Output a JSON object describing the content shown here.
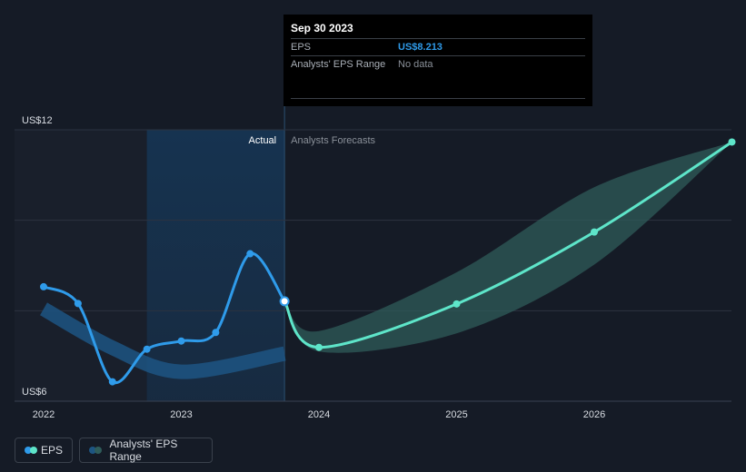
{
  "tooltip": {
    "date": "Sep 30 2023",
    "rows": [
      {
        "label": "EPS",
        "value": "US$8.213"
      },
      {
        "label": "Analysts' EPS Range",
        "value": "No data"
      }
    ]
  },
  "labels": {
    "actual": "Actual",
    "forecast": "Analysts Forecasts"
  },
  "legend": {
    "eps": "EPS",
    "range": "Analysts' EPS Range"
  },
  "colors": {
    "background": "#151b26",
    "eps_actual": "#2f9bea",
    "eps_forecast": "#5ee5c9",
    "range_actual": "#1d5582",
    "range_forecast": "#2f5c5a",
    "highlight": "#163452"
  },
  "chart_data": {
    "type": "line",
    "y_ticks": [
      {
        "value": 6,
        "label": "US$6"
      },
      {
        "value": 12,
        "label": "US$12"
      }
    ],
    "ylim": [
      6,
      12
    ],
    "x_ticks": [
      {
        "value": 2022.0,
        "label": "2022"
      },
      {
        "value": 2023.0,
        "label": "2023"
      },
      {
        "value": 2024.0,
        "label": "2024"
      },
      {
        "value": 2025.0,
        "label": "2025"
      },
      {
        "value": 2026.0,
        "label": "2026"
      }
    ],
    "xlim": [
      2021.8,
      2027.0
    ],
    "divider_x": 2023.75,
    "highlight_range": [
      2022.75,
      2023.75
    ],
    "series": [
      {
        "name": "EPS",
        "kind": "actual",
        "points": [
          [
            2022.0,
            8.53
          ],
          [
            2022.25,
            8.16
          ],
          [
            2022.5,
            6.43
          ],
          [
            2022.75,
            7.15
          ],
          [
            2023.0,
            7.33
          ],
          [
            2023.25,
            7.52
          ],
          [
            2023.5,
            9.26
          ],
          [
            2023.75,
            8.21
          ]
        ]
      },
      {
        "name": "EPS",
        "kind": "forecast",
        "points": [
          [
            2023.75,
            8.21
          ],
          [
            2024.0,
            7.19
          ],
          [
            2025.0,
            8.15
          ],
          [
            2026.0,
            9.74
          ],
          [
            2027.0,
            11.73
          ]
        ]
      },
      {
        "name": "Analysts' EPS Range",
        "kind": "actual_range",
        "points": [
          [
            2022.0,
            8.04
          ],
          [
            2022.5,
            7.18
          ],
          [
            2023.0,
            6.65
          ],
          [
            2023.75,
            7.05
          ]
        ]
      },
      {
        "name": "Analysts' EPS Range",
        "kind": "forecast_range",
        "upper": [
          [
            2023.75,
            8.21
          ],
          [
            2024.0,
            7.55
          ],
          [
            2025.0,
            8.85
          ],
          [
            2026.0,
            10.73
          ],
          [
            2027.0,
            11.73
          ]
        ],
        "lower": [
          [
            2023.75,
            8.21
          ],
          [
            2024.0,
            7.1
          ],
          [
            2025.0,
            7.5
          ],
          [
            2026.0,
            9.02
          ],
          [
            2027.0,
            11.73
          ]
        ]
      }
    ]
  }
}
